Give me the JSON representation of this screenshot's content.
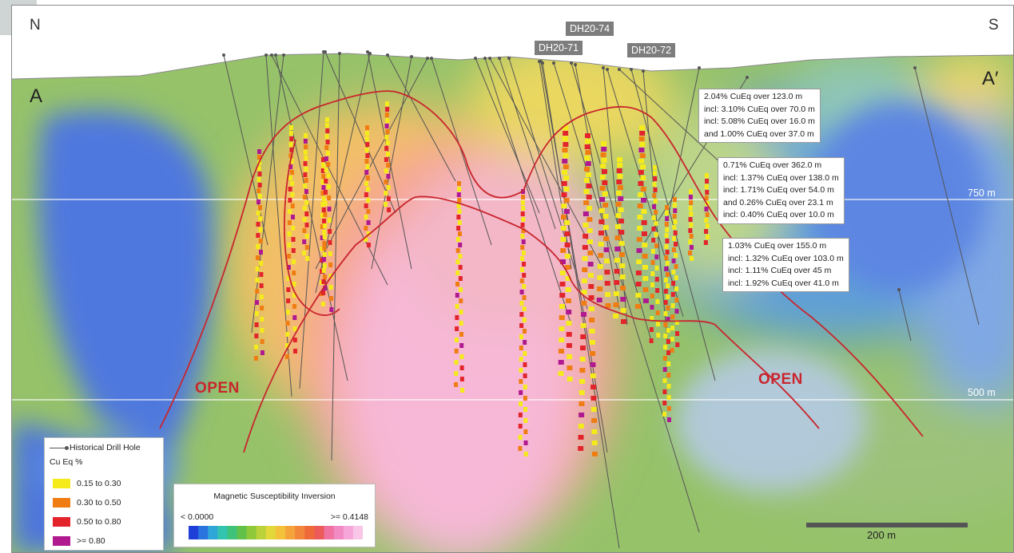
{
  "orientation": {
    "left": "N",
    "right": "S"
  },
  "section_ends": {
    "start": "A",
    "end": "A′"
  },
  "drill_hole_tags": [
    {
      "id": "dh20-71",
      "label": "DH20-71"
    },
    {
      "id": "dh20-74",
      "label": "DH20-74"
    },
    {
      "id": "dh20-72",
      "label": "DH20-72"
    }
  ],
  "elevation_lines": [
    {
      "label": "750 m",
      "elevation_m": 750
    },
    {
      "label": "500 m",
      "elevation_m": 500
    }
  ],
  "open_labels": [
    "OPEN",
    "OPEN"
  ],
  "intercepts": [
    {
      "lines": [
        "2.04% CuEq over 123.0 m",
        "incl: 3.10% CuEq over 70.0 m",
        "incl: 5.08% CuEq over 16.0 m",
        "and 1.00% CuEq over 37.0 m"
      ]
    },
    {
      "lines": [
        "0.71% CuEq over 362.0 m",
        "incl: 1.37% CuEq over 138.0 m",
        "incl: 1.71% CuEq over 54.0 m",
        "and 0.26% CuEq over 23.1 m",
        "incl: 0.40% CuEq over 10.0 m"
      ]
    },
    {
      "lines": [
        "1.03% CuEq over 155.0 m",
        "incl: 1.32% CuEq over 103.0 m",
        "incl: 1.11% CuEq over 45 m",
        "incl: 1.92% CuEq over 41.0 m"
      ]
    }
  ],
  "legend": {
    "historical": "Historical Drill Hole",
    "title": "Cu Eq %",
    "classes": [
      {
        "label": "0.15 to 0.30",
        "color": "#f5ea1a"
      },
      {
        "label": "0.30 to 0.50",
        "color": "#f07d12"
      },
      {
        "label": "0.50 to 0.80",
        "color": "#e3242b"
      },
      {
        "label": ">= 0.80",
        "color": "#b0198f"
      }
    ]
  },
  "magnetic_legend": {
    "title": "Magnetic Susceptibility Inversion",
    "min_label": "< 0.0000",
    "max_label": ">= 0.4148",
    "ramp": [
      "#1e3fd8",
      "#2a74e0",
      "#2fa6d8",
      "#33c4b0",
      "#3fc27a",
      "#62c148",
      "#8fc93a",
      "#bcd23a",
      "#e3d83a",
      "#f4c23a",
      "#f4a43a",
      "#f2863a",
      "#ef6a3a",
      "#ec5a5a",
      "#ef72a0",
      "#f28ac4",
      "#f6a6d8",
      "#f9c6e8"
    ]
  },
  "scale": {
    "label": "200 m"
  },
  "colors": {
    "zone_outline": "#c9252d",
    "drill_trace": "#555555"
  }
}
